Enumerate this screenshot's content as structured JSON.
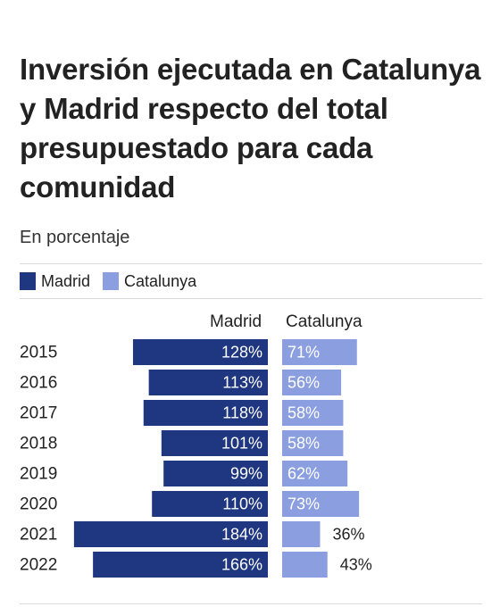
{
  "chart_data": {
    "type": "bar",
    "title": "Inversión ejecutada en Catalunya y Madrid respecto del total presupuestado para cada comunidad",
    "subtitle": "En porcentaje",
    "unit": "%",
    "legend_placement": "top-left",
    "categories": [
      "2015",
      "2016",
      "2017",
      "2018",
      "2019",
      "2020",
      "2021",
      "2022"
    ],
    "series": [
      {
        "name": "Madrid",
        "header": "Madrid",
        "color": "#1f3681",
        "values": [
          128,
          113,
          118,
          101,
          99,
          110,
          184,
          166
        ]
      },
      {
        "name": "Catalunya",
        "header": "Catalunya",
        "color": "#8b9fe0",
        "values": [
          71,
          56,
          58,
          58,
          62,
          73,
          36,
          43
        ]
      }
    ]
  }
}
